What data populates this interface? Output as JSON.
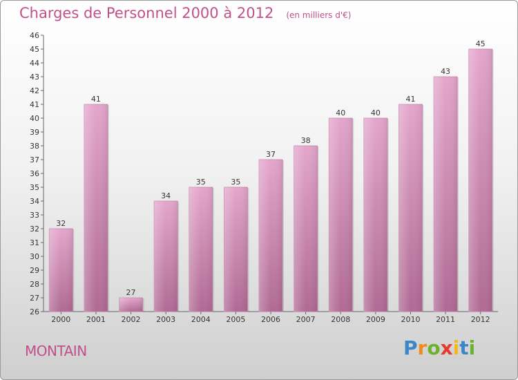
{
  "header": {
    "title": "Charges de Personnel 2000 à 2012",
    "unit": "(en milliers d'€)"
  },
  "footer": {
    "location": "MONTAIN",
    "logo": {
      "letters": [
        "P",
        "r",
        "o",
        "x",
        "i",
        "t",
        "i"
      ],
      "colors": [
        "#3a86c8",
        "#f08a1c",
        "#6ab42d",
        "#e23b2e",
        "#f2b81c",
        "#3a86c8",
        "#6ab42d"
      ]
    }
  },
  "chart_data": {
    "type": "bar",
    "categories": [
      "2000",
      "2001",
      "2002",
      "2003",
      "2004",
      "2005",
      "2006",
      "2007",
      "2008",
      "2009",
      "2010",
      "2011",
      "2012"
    ],
    "values": [
      32,
      41,
      27,
      34,
      35,
      35,
      37,
      38,
      40,
      40,
      41,
      43,
      45
    ],
    "title": "Charges de Personnel 2000 à 2012",
    "xlabel": "",
    "ylabel": "",
    "ylim": [
      26,
      46
    ],
    "yticks": [
      26,
      27,
      28,
      29,
      30,
      31,
      32,
      33,
      34,
      35,
      36,
      37,
      38,
      39,
      40,
      41,
      42,
      43,
      44,
      45,
      46
    ],
    "grid": false,
    "bar_color": "#d98fbb",
    "bar_color_dark": "#b86b98"
  }
}
